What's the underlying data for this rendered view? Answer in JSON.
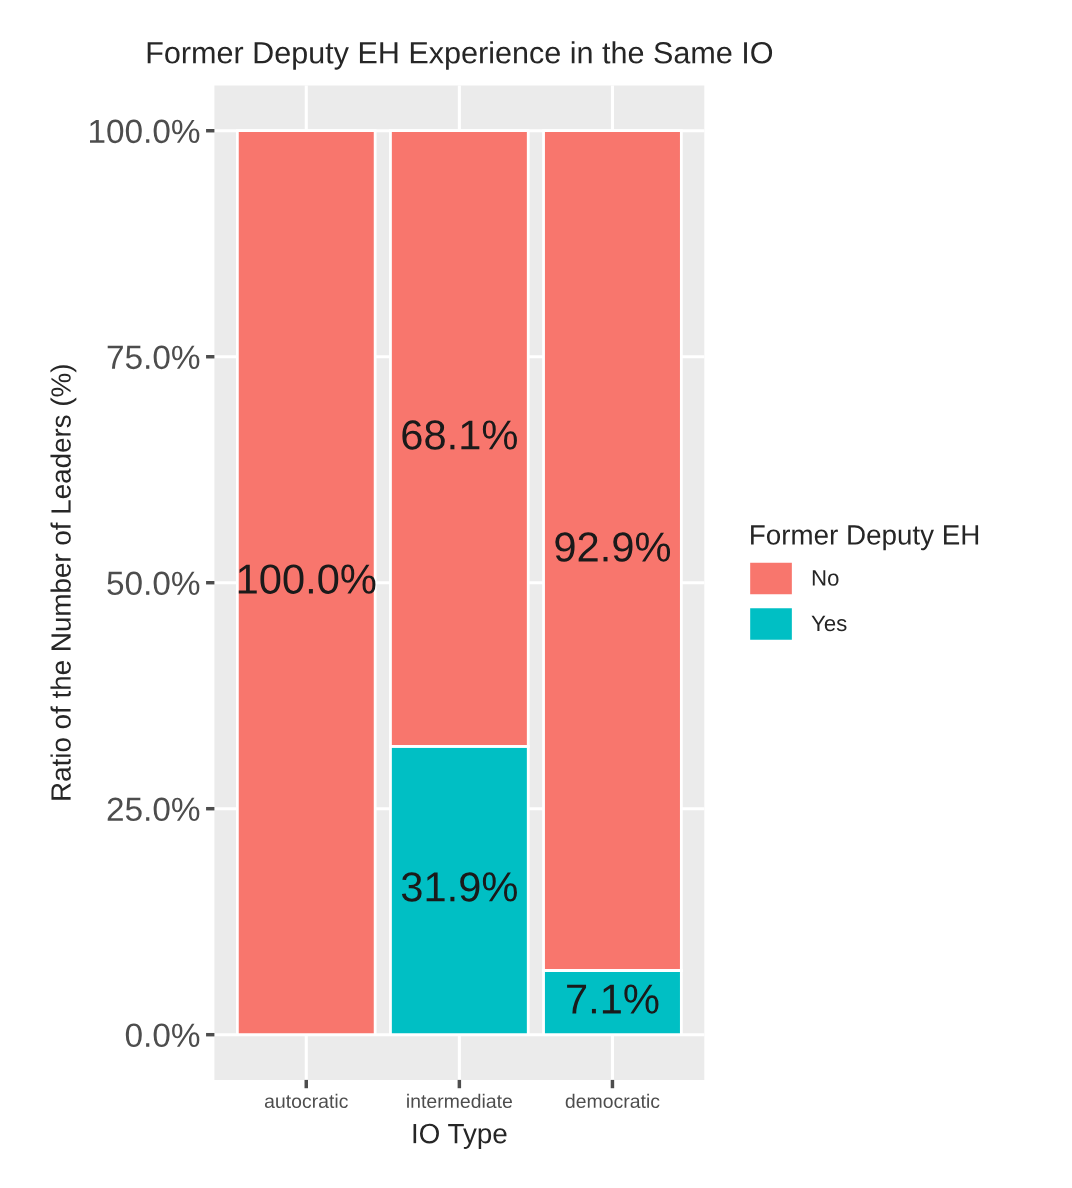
{
  "chart_data": {
    "type": "bar",
    "title": "Former Deputy EH Experience in the Same IO",
    "xlabel": "IO Type",
    "ylabel": "Ratio of the Number of Leaders (%)",
    "legend_title": "Former Deputy EH",
    "categories": [
      "autocratic",
      "intermediate",
      "democratic"
    ],
    "stacked": true,
    "series": [
      {
        "name": "Yes",
        "color": "#00bfc4",
        "values": [
          0,
          31.9,
          7.1
        ],
        "value_labels": [
          null,
          "31.9%",
          "7.1%"
        ]
      },
      {
        "name": "No",
        "color": "#f8766d",
        "values": [
          100,
          68.1,
          92.9
        ],
        "value_labels": [
          "100.0%",
          "68.1%",
          "92.9%"
        ]
      }
    ],
    "ylim": [
      -5,
      105
    ],
    "yticks": [
      {
        "value": 0,
        "label": "0.0%"
      },
      {
        "value": 25,
        "label": "25.0%"
      },
      {
        "value": 50,
        "label": "50.0%"
      },
      {
        "value": 75,
        "label": "75.0%"
      },
      {
        "value": 100,
        "label": "100.0%"
      }
    ],
    "grid": true,
    "legend": "right"
  }
}
